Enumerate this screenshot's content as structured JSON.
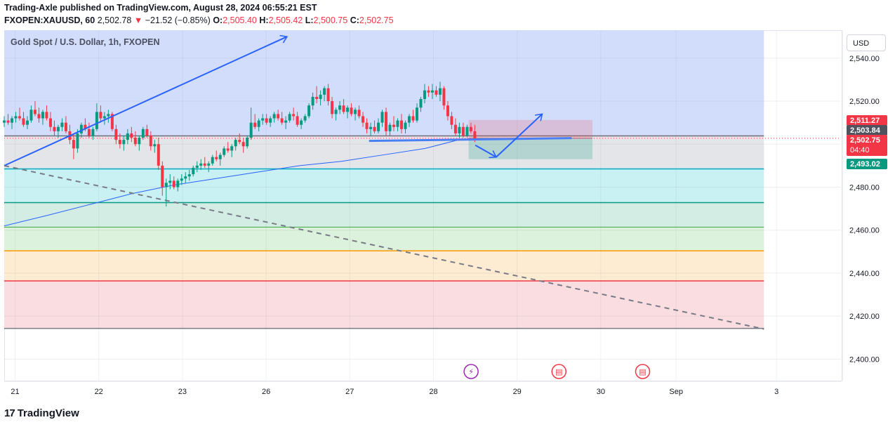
{
  "header": {
    "line1": "Trading-Axle published on TradingView.com, August 28, 2024 06:55:21 EST",
    "symbol": "FXOPEN:XAUUSD, 60",
    "price": "2,502.78",
    "change": "−21.52 (−0.85%)",
    "o_label": "O:",
    "o": "2,505.40",
    "h_label": "H:",
    "h": "2,505.42",
    "l_label": "L:",
    "l": "2,500.75",
    "c_label": "C:",
    "c": "2,502.75"
  },
  "pane": {
    "title": "Gold Spot / U.S. Dollar, 1h, FXOPEN"
  },
  "currency_button": "USD",
  "footer": {
    "logo_mark": "17",
    "logo_text": "TradingView"
  },
  "colors": {
    "up": "#089981",
    "down": "#f23645",
    "ma": "#2962ff",
    "drawing": "#2962ff"
  },
  "chart_data": {
    "type": "candlestick",
    "ylim": [
      2390,
      2553
    ],
    "y_ticks": [
      2400,
      2420,
      2440,
      2460,
      2480,
      2500,
      2520,
      2540
    ],
    "y_tick_labels": [
      "2,400.00",
      "2,420.00",
      "2,440.00",
      "2,460.00",
      "2,480.00",
      "2,500.00",
      "2,520.00",
      "2,540.00"
    ],
    "x_ticks": [
      {
        "label": "21",
        "t": 0.1
      },
      {
        "label": "22",
        "t": 1.1
      },
      {
        "label": "23",
        "t": 2.1
      },
      {
        "label": "26",
        "t": 3.1
      },
      {
        "label": "27",
        "t": 4.1
      },
      {
        "label": "28",
        "t": 5.1
      },
      {
        "label": "29",
        "t": 6.1
      },
      {
        "label": "30",
        "t": 7.1
      },
      {
        "label": "Sep",
        "t": 8.0
      },
      {
        "label": "3",
        "t": 9.2
      }
    ],
    "xlim": [
      -0.03,
      9.97
    ],
    "candle_t_start": -0.03,
    "candle_t_step": 0.0461,
    "candles": [
      [
        2510,
        2513,
        2508,
        2511
      ],
      [
        2511,
        2514,
        2509,
        2510
      ],
      [
        2510,
        2513,
        2507,
        2512
      ],
      [
        2512,
        2515,
        2510,
        2513
      ],
      [
        2513,
        2517,
        2511,
        2512
      ],
      [
        2512,
        2515,
        2508,
        2509
      ],
      [
        2509,
        2513,
        2507,
        2511
      ],
      [
        2511,
        2518,
        2510,
        2516
      ],
      [
        2516,
        2520,
        2513,
        2514
      ],
      [
        2514,
        2517,
        2510,
        2512
      ],
      [
        2512,
        2516,
        2509,
        2515
      ],
      [
        2515,
        2518,
        2511,
        2512
      ],
      [
        2512,
        2515,
        2506,
        2508
      ],
      [
        2508,
        2511,
        2504,
        2506
      ],
      [
        2506,
        2509,
        2503,
        2508
      ],
      [
        2508,
        2512,
        2506,
        2510
      ],
      [
        2510,
        2513,
        2505,
        2506
      ],
      [
        2506,
        2509,
        2500,
        2502
      ],
      [
        2502,
        2505,
        2493,
        2498
      ],
      [
        2498,
        2507,
        2496,
        2505
      ],
      [
        2505,
        2510,
        2503,
        2509
      ],
      [
        2509,
        2512,
        2506,
        2507
      ],
      [
        2507,
        2510,
        2503,
        2504
      ],
      [
        2504,
        2508,
        2502,
        2507
      ],
      [
        2507,
        2519,
        2506,
        2515
      ],
      [
        2515,
        2518,
        2510,
        2512
      ],
      [
        2512,
        2515,
        2509,
        2513
      ],
      [
        2513,
        2516,
        2510,
        2514
      ],
      [
        2514,
        2515,
        2506,
        2507
      ],
      [
        2507,
        2509,
        2500,
        2502
      ],
      [
        2502,
        2505,
        2498,
        2500
      ],
      [
        2500,
        2504,
        2497,
        2502
      ],
      [
        2502,
        2507,
        2500,
        2505
      ],
      [
        2505,
        2508,
        2501,
        2503
      ],
      [
        2503,
        2506,
        2499,
        2500
      ],
      [
        2500,
        2504,
        2497,
        2503
      ],
      [
        2503,
        2508,
        2502,
        2507
      ],
      [
        2507,
        2509,
        2503,
        2504
      ],
      [
        2504,
        2506,
        2497,
        2499
      ],
      [
        2499,
        2502,
        2496,
        2500
      ],
      [
        2500,
        2503,
        2488,
        2490
      ],
      [
        2490,
        2492,
        2476,
        2480
      ],
      [
        2480,
        2484,
        2471,
        2482
      ],
      [
        2482,
        2486,
        2479,
        2483
      ],
      [
        2483,
        2485,
        2479,
        2480
      ],
      [
        2480,
        2484,
        2478,
        2483
      ],
      [
        2483,
        2486,
        2481,
        2484
      ],
      [
        2484,
        2487,
        2482,
        2485
      ],
      [
        2485,
        2488,
        2483,
        2486
      ],
      [
        2486,
        2490,
        2485,
        2489
      ],
      [
        2489,
        2492,
        2487,
        2490
      ],
      [
        2490,
        2493,
        2488,
        2491
      ],
      [
        2491,
        2494,
        2489,
        2490
      ],
      [
        2490,
        2492,
        2487,
        2491
      ],
      [
        2491,
        2495,
        2490,
        2494
      ],
      [
        2494,
        2497,
        2492,
        2493
      ],
      [
        2493,
        2496,
        2490,
        2495
      ],
      [
        2495,
        2499,
        2494,
        2498
      ],
      [
        2498,
        2501,
        2496,
        2497
      ],
      [
        2497,
        2500,
        2494,
        2499
      ],
      [
        2499,
        2503,
        2497,
        2502
      ],
      [
        2502,
        2505,
        2500,
        2501
      ],
      [
        2501,
        2503,
        2496,
        2499
      ],
      [
        2499,
        2504,
        2498,
        2503
      ],
      [
        2503,
        2517,
        2502,
        2510
      ],
      [
        2510,
        2514,
        2507,
        2508
      ],
      [
        2508,
        2512,
        2506,
        2511
      ],
      [
        2511,
        2514,
        2509,
        2512
      ],
      [
        2512,
        2514,
        2509,
        2510
      ],
      [
        2510,
        2513,
        2508,
        2512
      ],
      [
        2512,
        2515,
        2510,
        2514
      ],
      [
        2514,
        2516,
        2511,
        2512
      ],
      [
        2512,
        2515,
        2509,
        2510
      ],
      [
        2510,
        2513,
        2507,
        2511
      ],
      [
        2511,
        2515,
        2510,
        2514
      ],
      [
        2514,
        2517,
        2511,
        2513
      ],
      [
        2513,
        2515,
        2508,
        2509
      ],
      [
        2509,
        2512,
        2507,
        2511
      ],
      [
        2511,
        2514,
        2510,
        2513
      ],
      [
        2513,
        2519,
        2512,
        2518
      ],
      [
        2518,
        2524,
        2516,
        2522
      ],
      [
        2522,
        2527,
        2519,
        2521
      ],
      [
        2521,
        2525,
        2518,
        2523
      ],
      [
        2523,
        2527,
        2520,
        2526
      ],
      [
        2526,
        2528,
        2518,
        2520
      ],
      [
        2520,
        2522,
        2512,
        2514
      ],
      [
        2514,
        2517,
        2511,
        2516
      ],
      [
        2516,
        2520,
        2514,
        2518
      ],
      [
        2518,
        2521,
        2514,
        2515
      ],
      [
        2515,
        2518,
        2512,
        2517
      ],
      [
        2517,
        2519,
        2513,
        2514
      ],
      [
        2514,
        2517,
        2511,
        2516
      ],
      [
        2516,
        2518,
        2512,
        2513
      ],
      [
        2513,
        2515,
        2508,
        2510
      ],
      [
        2510,
        2512,
        2505,
        2507
      ],
      [
        2507,
        2510,
        2504,
        2508
      ],
      [
        2508,
        2511,
        2505,
        2506
      ],
      [
        2506,
        2512,
        2505,
        2510
      ],
      [
        2510,
        2516,
        2508,
        2515
      ],
      [
        2515,
        2517,
        2504,
        2506
      ],
      [
        2506,
        2510,
        2504,
        2509
      ],
      [
        2509,
        2513,
        2506,
        2508
      ],
      [
        2508,
        2512,
        2506,
        2511
      ],
      [
        2511,
        2514,
        2505,
        2507
      ],
      [
        2507,
        2511,
        2505,
        2510
      ],
      [
        2510,
        2514,
        2508,
        2513
      ],
      [
        2513,
        2516,
        2510,
        2511
      ],
      [
        2511,
        2519,
        2510,
        2517
      ],
      [
        2517,
        2522,
        2515,
        2521
      ],
      [
        2521,
        2528,
        2519,
        2525
      ],
      [
        2525,
        2527,
        2522,
        2524
      ],
      [
        2524,
        2528,
        2521,
        2525
      ],
      [
        2525,
        2527,
        2522,
        2523
      ],
      [
        2523,
        2529,
        2520,
        2526
      ],
      [
        2526,
        2527,
        2516,
        2518
      ],
      [
        2518,
        2520,
        2511,
        2513
      ],
      [
        2513,
        2515,
        2507,
        2509
      ],
      [
        2509,
        2512,
        2504,
        2505
      ],
      [
        2505,
        2510,
        2503,
        2508
      ],
      [
        2508,
        2510,
        2503,
        2504
      ],
      [
        2504,
        2509,
        2503,
        2508
      ],
      [
        2508,
        2510,
        2505,
        2506
      ],
      [
        2506,
        2509,
        2501,
        2502
      ]
    ],
    "moving_average": [
      {
        "t": -0.03,
        "v": 2462
      },
      {
        "t": 0.5,
        "v": 2467
      },
      {
        "t": 1.0,
        "v": 2472
      },
      {
        "t": 1.5,
        "v": 2477
      },
      {
        "t": 2.0,
        "v": 2481
      },
      {
        "t": 2.5,
        "v": 2484
      },
      {
        "t": 3.0,
        "v": 2487
      },
      {
        "t": 3.5,
        "v": 2490
      },
      {
        "t": 4.0,
        "v": 2492
      },
      {
        "t": 4.5,
        "v": 2495
      },
      {
        "t": 5.0,
        "v": 2498
      },
      {
        "t": 5.45,
        "v": 2502.5
      }
    ],
    "horizontal_levels": [
      {
        "value": 2503.84,
        "color": "#6a6d78",
        "width": 1.5
      },
      {
        "value": 2488.5,
        "color": "#00acc1",
        "width": 1.5
      },
      {
        "value": 2472.8,
        "color": "#089981",
        "width": 1.5
      },
      {
        "value": 2461.4,
        "color": "#4caf50",
        "width": 1.2
      },
      {
        "value": 2450.4,
        "color": "#ff9800",
        "width": 1.5
      },
      {
        "value": 2436.4,
        "color": "#f23645",
        "width": 1.5
      },
      {
        "value": 2414.3,
        "color": "#787b86",
        "width": 1.5
      }
    ],
    "zones": [
      {
        "from": 2503.84,
        "to": 2553,
        "color": "#d2ddfb"
      },
      {
        "from": 2488.5,
        "to": 2503.84,
        "color": "#e4e5e8"
      },
      {
        "from": 2472.8,
        "to": 2488.5,
        "color": "#c9f0f3"
      },
      {
        "from": 2461.4,
        "to": 2472.8,
        "color": "#d3ede4"
      },
      {
        "from": 2450.4,
        "to": 2461.4,
        "color": "#dcf2dc"
      },
      {
        "from": 2436.4,
        "to": 2450.4,
        "color": "#fdebd2"
      },
      {
        "from": 2414.3,
        "to": 2436.4,
        "color": "#f9dde0"
      }
    ],
    "zone_t_range": [
      -0.03,
      9.05
    ],
    "trend_lines": [
      {
        "t1": -0.03,
        "v1": 2490,
        "t2": 3.35,
        "v2": 2550,
        "color": "#2962ff",
        "dashed": false,
        "arrow": true
      },
      {
        "t1": -0.03,
        "v1": 2490,
        "t2": 9.05,
        "v2": 2414,
        "color": "#787b86",
        "dashed": true,
        "arrow": false
      },
      {
        "t1": 4.33,
        "v1": 2501.5,
        "t2": 6.75,
        "v2": 2502.8,
        "color": "#4a7ff5",
        "dashed": false,
        "arrow": false,
        "width": 3
      },
      {
        "t1": 5.6,
        "v1": 2499.5,
        "t2": 5.85,
        "v2": 2494,
        "color": "#2962ff",
        "dashed": false,
        "arrow": true
      },
      {
        "t1": 5.85,
        "v1": 2494,
        "t2": 6.4,
        "v2": 2514,
        "color": "#2962ff",
        "dashed": false,
        "arrow": true
      }
    ],
    "position_tool": {
      "t1": 5.52,
      "t2": 7.0,
      "entry": 2502.75,
      "target": 2493.02,
      "stop": 2511.27,
      "stop_color": "rgba(242,54,69,0.18)",
      "target_color": "rgba(8,153,129,0.22)"
    },
    "price_labels": [
      {
        "value": 2511.27,
        "text": "2,511.27",
        "color": "#f23645"
      },
      {
        "value": 2503.84,
        "text": "2,503.84",
        "color": "#50535e"
      },
      {
        "value": 2502.75,
        "text": "2,502.75",
        "sub": "04:40",
        "color": "#f23645"
      },
      {
        "value": 2493.02,
        "text": "2,493.02",
        "color": "#089981"
      }
    ],
    "events": [
      {
        "t": 5.55,
        "icon": "lightning-icon",
        "color": "#9c27b0"
      },
      {
        "t": 6.6,
        "icon": "us-flag-icon",
        "color": "#f23645"
      },
      {
        "t": 7.6,
        "icon": "us-flag-icon",
        "color": "#f23645"
      }
    ]
  }
}
